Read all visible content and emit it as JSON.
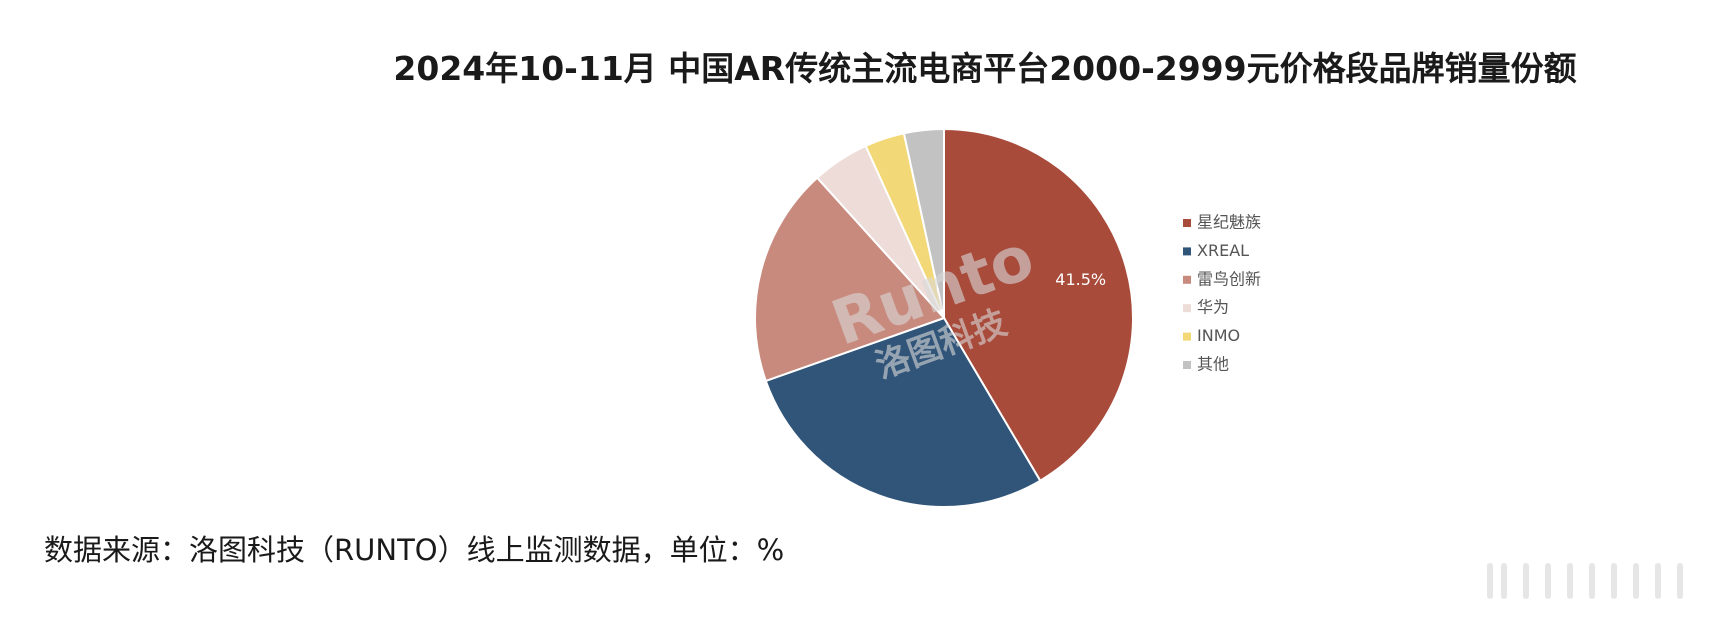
{
  "chart_data": {
    "type": "pie",
    "title": "2024年10-11月 中国AR传统主流电商平台2000-2999元价格段品牌销量份额",
    "categories": [
      "星纪魅族",
      "XREAL",
      "雷鸟创新",
      "华为",
      "INMO",
      "其他"
    ],
    "values": [
      41.5,
      28.1,
      18.7,
      4.9,
      3.4,
      3.4
    ],
    "value_labels": [
      "41.5%",
      null,
      null,
      null,
      null,
      null
    ],
    "colors": [
      "#a84b3b",
      "#315479",
      "#c98a7e",
      "#eddcd7",
      "#f3d878",
      "#c2c2c2"
    ],
    "legend": "right",
    "watermark": [
      "Runto",
      "洛图科技"
    ],
    "source": "数据来源：洛图科技（RUNTO）线上监测数据，单位：%"
  }
}
